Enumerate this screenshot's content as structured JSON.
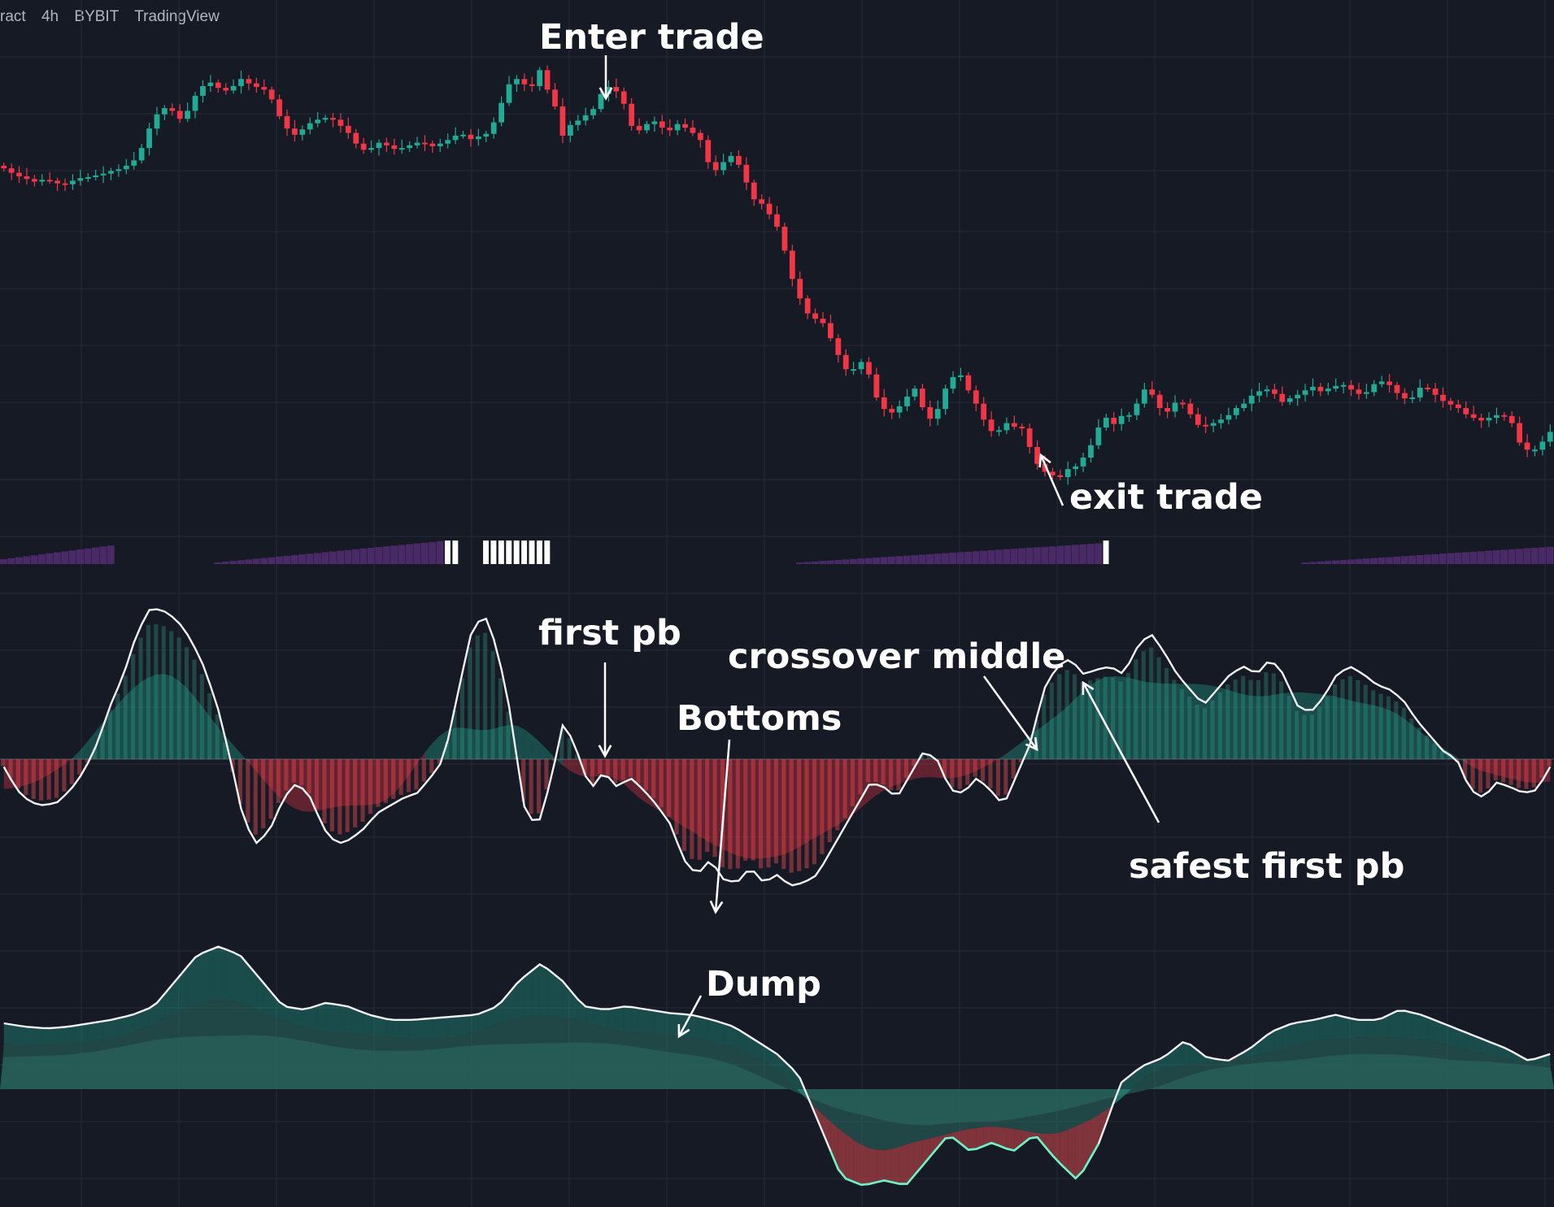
{
  "header": {
    "symbol_fragment": "ract",
    "interval": "4h",
    "exchange": "BYBIT",
    "source": "TradingView"
  },
  "colors": {
    "background": "#161a25",
    "grid": "#252a36",
    "bull": "#22ab94",
    "bear": "#f23645",
    "bar_signal": "#ffffff",
    "bar_bg": "#4a2a66",
    "osc_bull_fill": "#2a6b62",
    "osc_bear_fill": "#c6444b",
    "line": "#f2f2f2",
    "dump_line_bull": "#5df2c0",
    "dump_line_bear": "#ff7070"
  },
  "annotations": {
    "enter_trade": "Enter trade",
    "exit_trade": "exit trade",
    "first_pb": "first pb",
    "bottoms": "Bottoms",
    "crossover_middle": "crossover middle",
    "safest_first_pb": "safest first pb",
    "dump": "Dump"
  },
  "chart_data": [
    {
      "type": "candlestick",
      "pane": "price",
      "trend_description": "sideways, peak near bar 28, plateau, sharp decline from bar 90 to bar 120, then sideways recovery",
      "close": [
        97.5,
        97.0,
        96.6,
        96.3,
        96.0,
        96.2,
        96.1,
        95.8,
        95.7,
        96.1,
        96.4,
        96.5,
        96.7,
        96.9,
        97.2,
        97.4,
        97.8,
        98.4,
        99.8,
        102.0,
        103.6,
        104.3,
        104.0,
        103.1,
        104.0,
        105.7,
        106.8,
        107.2,
        106.6,
        106.3,
        106.8,
        107.6,
        107.1,
        106.7,
        106.4,
        105.3,
        103.4,
        102.0,
        101.3,
        101.9,
        102.6,
        103.0,
        103.2,
        103.0,
        102.3,
        101.5,
        100.3,
        99.6,
        99.8,
        100.4,
        100.1,
        99.7,
        99.8,
        100.1,
        100.4,
        100.3,
        100.0,
        100.3,
        100.7,
        101.2,
        101.3,
        100.8,
        101.1,
        101.4,
        102.7,
        104.9,
        107.0,
        107.6,
        107.0,
        106.8,
        108.6,
        106.4,
        104.5,
        101.2,
        102.4,
        102.9,
        103.5,
        104.2,
        105.9,
        106.7,
        106.2,
        104.8,
        102.3,
        101.8,
        102.5,
        102.8,
        102.1,
        101.8,
        102.5,
        102.1,
        101.5,
        100.7,
        98.2,
        97.3,
        98.2,
        98.9,
        97.9,
        95.9,
        94.0,
        93.5,
        92.3,
        90.9,
        88.2,
        85.0,
        82.8,
        81.1,
        80.5,
        80.0,
        78.3,
        76.4,
        74.8,
        74.8,
        75.6,
        74.2,
        71.6,
        70.3,
        69.9,
        70.6,
        71.7,
        72.6,
        70.5,
        69.2,
        70.3,
        72.6,
        73.9,
        74.1,
        72.4,
        70.9,
        69.1,
        67.8,
        67.9,
        68.7,
        68.3,
        68.1,
        66.0,
        64.1,
        63.2,
        62.8,
        62.6,
        63.5,
        63.8,
        64.8,
        66.2,
        68.2,
        69.3,
        68.6,
        69.5,
        69.6,
        70.9,
        72.5,
        71.9,
        70.4,
        70.0,
        71.0,
        70.9,
        69.7,
        68.5,
        68.4,
        68.7,
        69.1,
        69.6,
        70.4,
        70.9,
        71.8,
        72.3,
        72.5,
        72.0,
        71.1,
        71.5,
        71.9,
        72.4,
        72.8,
        72.3,
        72.6,
        72.9,
        73.0,
        72.5,
        72.0,
        72.2,
        73.1,
        73.4,
        73.0,
        72.1,
        71.5,
        71.6,
        72.7,
        72.6,
        71.9,
        71.2,
        70.8,
        70.4,
        69.7,
        69.3,
        69.0,
        69.3,
        69.6,
        69.5,
        68.7,
        66.5,
        65.7,
        65.7,
        66.6,
        67.7
      ]
    },
    {
      "type": "bar",
      "pane": "signal strip",
      "trend_description": "purple ramp columns building up, white signal columns near bars 58-59, 63-71 and 144"
    },
    {
      "type": "line",
      "pane": "oscillator",
      "trend_description": "oscillator line over red/green histogram and smoothed red/green band around zero; dips to bottom near bars 84-100, crosses middle near bar 128",
      "values": [
        -0.05,
        -0.2,
        -0.28,
        -0.3,
        -0.28,
        -0.2,
        -0.08,
        0.1,
        0.35,
        0.55,
        0.82,
        0.98,
        0.96,
        0.9,
        0.78,
        0.6,
        0.35,
        0.0,
        -0.4,
        -0.55,
        -0.45,
        -0.25,
        -0.15,
        -0.25,
        -0.45,
        -0.55,
        -0.52,
        -0.45,
        -0.35,
        -0.3,
        -0.25,
        -0.22,
        -0.12,
        0.0,
        0.4,
        0.8,
        0.95,
        0.72,
        0.3,
        -0.3,
        -0.45,
        -0.15,
        0.25,
        0.05,
        -0.2,
        -0.08,
        -0.18,
        -0.12,
        -0.2,
        -0.3,
        -0.42,
        -0.65,
        -0.75,
        -0.65,
        -0.78,
        -0.8,
        -0.7,
        -0.8,
        -0.75,
        -0.82,
        -0.8,
        -0.75,
        -0.6,
        -0.45,
        -0.3,
        -0.15,
        -0.18,
        -0.25,
        -0.1,
        0.05,
        0.0,
        -0.2,
        -0.22,
        -0.12,
        -0.2,
        -0.3,
        -0.1,
        0.1,
        0.45,
        0.6,
        0.65,
        0.55,
        0.58,
        0.6,
        0.55,
        0.72,
        0.82,
        0.7,
        0.55,
        0.45,
        0.35,
        0.45,
        0.55,
        0.6,
        0.55,
        0.65,
        0.55,
        0.35,
        0.3,
        0.4,
        0.55,
        0.6,
        0.55,
        0.48,
        0.45,
        0.38,
        0.25,
        0.15,
        0.05,
        0.0,
        -0.2,
        -0.25,
        -0.15,
        -0.18,
        -0.22,
        -0.2,
        -0.05
      ]
    },
    {
      "type": "area",
      "pane": "dump",
      "trend_description": "white line with layered teal bands; deep red dump area roughly bars 92 to 128, then recovery",
      "values": [
        0.1,
        0.08,
        0.07,
        0.08,
        0.1,
        0.12,
        0.15,
        0.2,
        0.35,
        0.5,
        0.55,
        0.5,
        0.35,
        0.2,
        0.18,
        0.22,
        0.2,
        0.15,
        0.12,
        0.12,
        0.13,
        0.14,
        0.15,
        0.2,
        0.35,
        0.45,
        0.35,
        0.2,
        0.18,
        0.2,
        0.18,
        0.16,
        0.15,
        0.12,
        0.08,
        0.0,
        -0.08,
        -0.2,
        -0.5,
        -0.8,
        -0.85,
        -0.82,
        -0.85,
        -0.7,
        -0.55,
        -0.65,
        -0.6,
        -0.65,
        -0.55,
        -0.7,
        -0.82,
        -0.6,
        -0.25,
        -0.15,
        -0.1,
        0.0,
        -0.1,
        -0.12,
        -0.05,
        0.05,
        0.1,
        0.12,
        0.15,
        0.12,
        0.12,
        0.18,
        0.15,
        0.1,
        0.05,
        0.0,
        -0.05,
        -0.12,
        -0.08
      ]
    }
  ]
}
